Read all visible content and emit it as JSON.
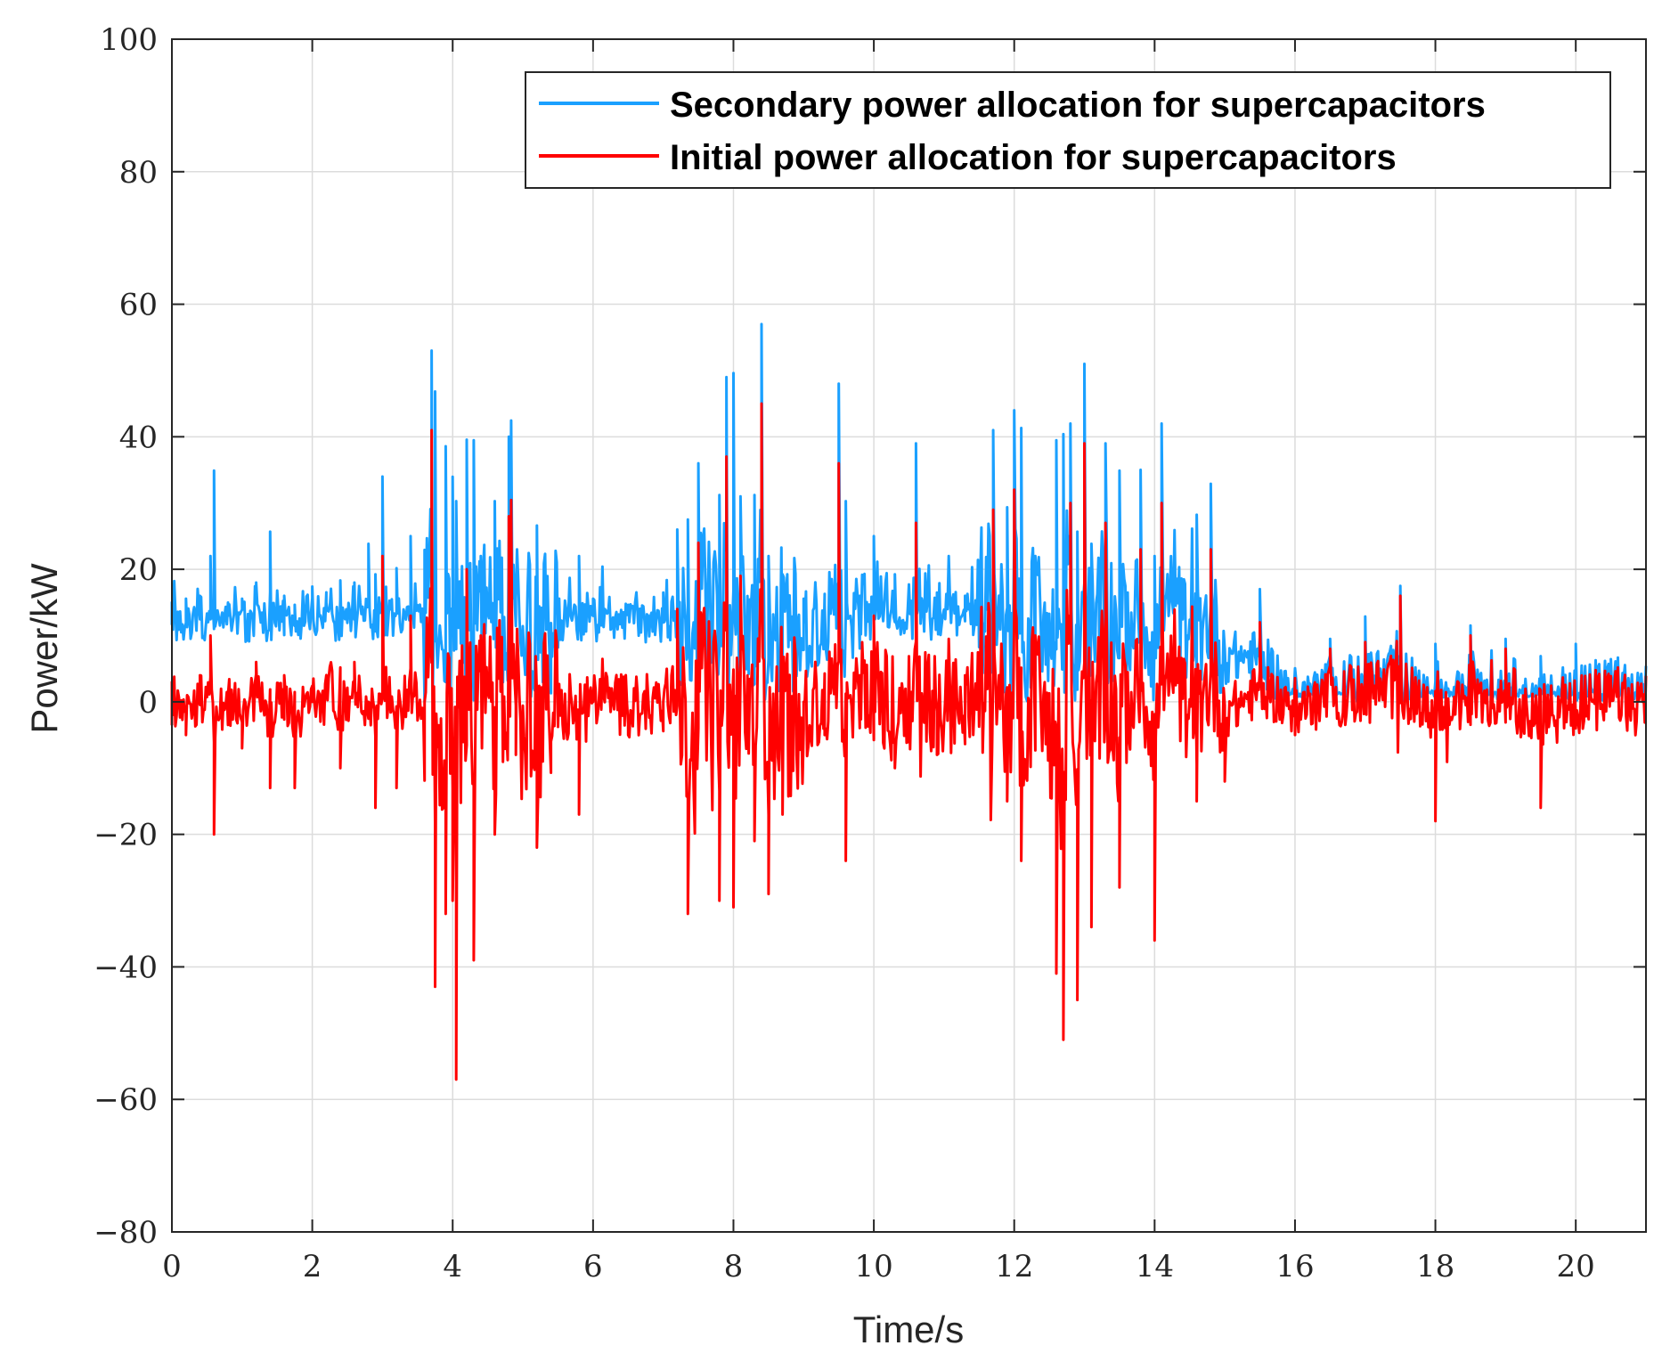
{
  "chart_data": {
    "type": "line",
    "title": "",
    "xlabel": "Time/s",
    "ylabel": "Power/kW",
    "xlim": [
      0,
      21
    ],
    "ylim": [
      -80,
      100
    ],
    "xticks": [
      0,
      2,
      4,
      6,
      8,
      10,
      12,
      14,
      16,
      18,
      20
    ],
    "yticks": [
      -80,
      -60,
      -40,
      -20,
      0,
      20,
      40,
      60,
      80,
      100
    ],
    "xtick_labels": [
      "0",
      "2",
      "4",
      "6",
      "8",
      "10",
      "12",
      "14",
      "16",
      "18",
      "20"
    ],
    "ytick_labels": [
      "−80",
      "−60",
      "−40",
      "−20",
      "0",
      "20",
      "40",
      "60",
      "80",
      "100"
    ],
    "grid": true,
    "legend_position": "top-right",
    "series": [
      {
        "name": "Secondary power allocation for supercapacitors",
        "color": "#1aa0ff",
        "generator": {
          "offset_start": 12,
          "offset_end": 1.5,
          "fade_start_s": 14.5,
          "fade_end_s": 16.0
        },
        "x": [
          0,
          0.2,
          0.4,
          0.55,
          0.6,
          0.8,
          1.0,
          1.2,
          1.4,
          1.6,
          1.75,
          2.0,
          2.2,
          2.4,
          2.6,
          2.8,
          2.9,
          3.0,
          3.2,
          3.4,
          3.6,
          3.7,
          3.75,
          3.9,
          4.0,
          4.05,
          4.2,
          4.3,
          4.4,
          4.6,
          4.8,
          4.9,
          5.2,
          5.4,
          5.8,
          6.0,
          6.5,
          7.0,
          7.2,
          7.35,
          7.5,
          7.8,
          7.9,
          8.0,
          8.1,
          8.3,
          8.4,
          8.5,
          8.7,
          9.0,
          9.3,
          9.5,
          9.6,
          9.8,
          10.0,
          10.3,
          10.6,
          10.9,
          11.3,
          11.7,
          11.9,
          12.0,
          12.1,
          12.3,
          12.6,
          12.7,
          12.8,
          12.9,
          13.0,
          13.1,
          13.3,
          13.5,
          13.8,
          14.0,
          14.1,
          14.4,
          14.6,
          14.8,
          15.0,
          15.5,
          16.0,
          16.5,
          17.0,
          17.5,
          18.0,
          18.5,
          19.0,
          19.5,
          20.0,
          20.5,
          21.0
        ],
        "values": [
          16,
          13,
          10,
          23,
          34,
          14,
          13,
          14,
          24,
          13,
          12,
          15,
          12,
          16,
          12,
          22,
          17,
          34,
          18,
          25,
          21,
          52,
          47,
          38,
          33,
          29,
          43,
          39,
          19,
          29,
          38,
          13,
          25,
          9,
          20,
          13,
          12,
          14,
          13,
          26,
          33,
          30,
          47,
          50,
          18,
          30,
          55,
          20,
          17,
          13,
          12,
          46,
          29,
          15,
          25,
          17,
          21,
          14,
          13,
          18,
          28,
          31,
          41,
          11,
          39,
          40,
          41,
          24,
          48,
          22,
          34,
          34,
          32,
          20,
          35,
          14,
          27,
          22,
          6,
          14,
          5,
          6,
          14,
          17,
          9,
          8,
          10,
          7,
          9,
          7,
          3
        ]
      },
      {
        "name": "Initial power allocation for supercapacitors",
        "color": "#ff0000",
        "x": [
          0,
          0.2,
          0.4,
          0.55,
          0.6,
          0.8,
          1.0,
          1.2,
          1.4,
          1.6,
          1.75,
          2.0,
          2.2,
          2.4,
          2.6,
          2.8,
          2.9,
          3.0,
          3.2,
          3.4,
          3.6,
          3.7,
          3.75,
          3.9,
          4.0,
          4.05,
          4.2,
          4.3,
          4.4,
          4.6,
          4.8,
          4.9,
          5.2,
          5.4,
          5.8,
          6.0,
          6.5,
          7.0,
          7.2,
          7.35,
          7.5,
          7.8,
          7.9,
          8.0,
          8.1,
          8.3,
          8.4,
          8.5,
          8.7,
          9.0,
          9.3,
          9.5,
          9.6,
          9.8,
          10.0,
          10.3,
          10.6,
          10.9,
          11.3,
          11.7,
          11.9,
          12.0,
          12.1,
          12.3,
          12.6,
          12.7,
          12.8,
          12.9,
          13.0,
          13.1,
          13.3,
          13.5,
          13.8,
          14.0,
          14.1,
          14.4,
          14.6,
          14.8,
          15.0,
          15.5,
          16.0,
          16.5,
          17.0,
          17.5,
          18.0,
          18.5,
          19.0,
          19.5,
          20.0,
          20.5,
          21.0
        ],
        "values": [
          3,
          -5,
          4,
          10,
          -20,
          1,
          -7,
          6,
          -13,
          4,
          -13,
          0,
          3,
          -10,
          6,
          0,
          -16,
          22,
          -13,
          13,
          0,
          41,
          -43,
          -32,
          -30,
          -57,
          20,
          -39,
          10,
          -20,
          28,
          -8,
          -22,
          -6,
          -17,
          0,
          -5,
          0,
          14,
          -32,
          24,
          -30,
          37,
          -31,
          19,
          -21,
          45,
          -29,
          -17,
          0,
          -5,
          36,
          -24,
          4,
          13,
          -10,
          27,
          -8,
          4,
          29,
          -15,
          32,
          -24,
          10,
          -41,
          -51,
          30,
          -45,
          39,
          -34,
          27,
          -28,
          23,
          -36,
          30,
          1,
          -15,
          23,
          -12,
          12,
          -5,
          8,
          9,
          16,
          -18,
          10,
          8,
          -16,
          -4,
          3,
          -2
        ]
      }
    ]
  }
}
